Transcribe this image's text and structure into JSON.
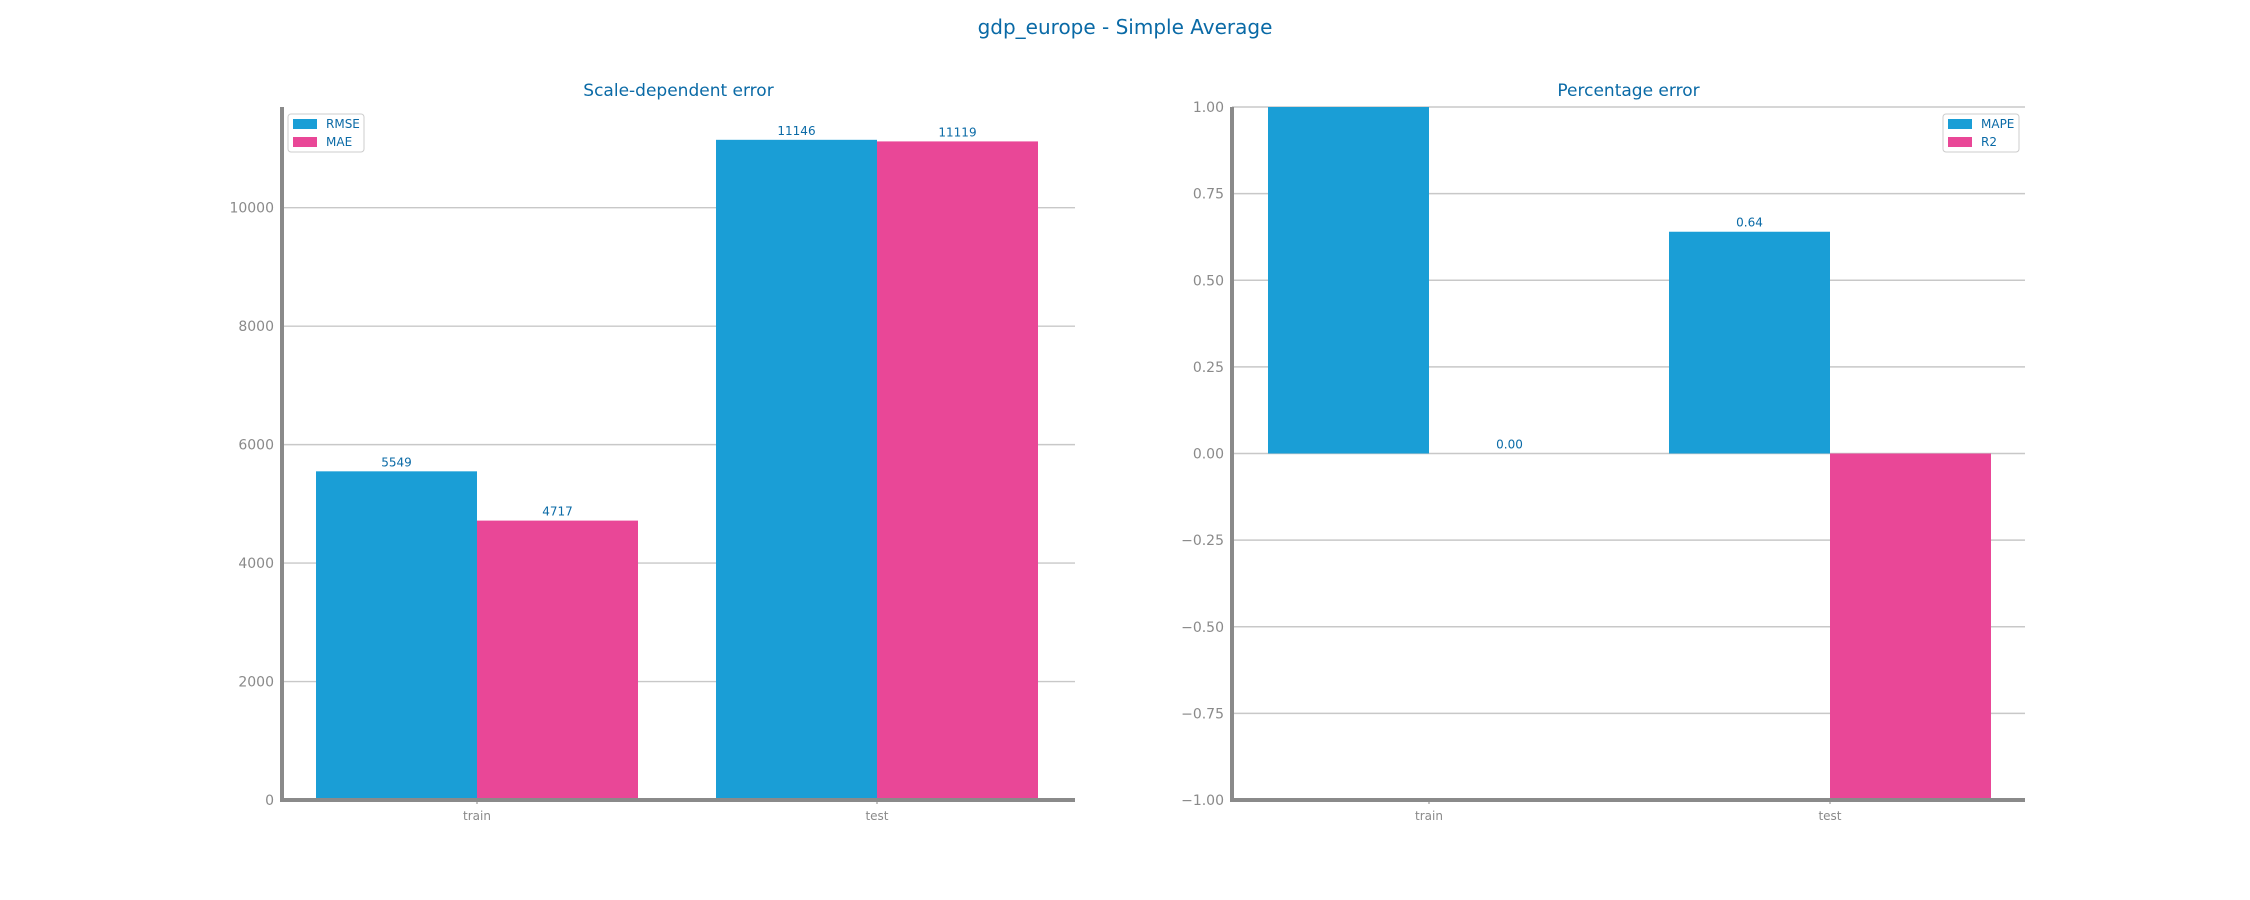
{
  "title": "gdp_europe - Simple Average",
  "colors": {
    "series1": "#1a9ed6",
    "series2": "#e94797",
    "text": "#0a6aa6",
    "axis": "#8a8a8a",
    "grid": "#c8c8c8"
  },
  "chart_data": [
    {
      "type": "bar",
      "title": "Scale-dependent error",
      "categories": [
        "train",
        "test"
      ],
      "series": [
        {
          "name": "RMSE",
          "values": [
            5549,
            11146
          ],
          "labels": [
            "5549",
            "11146"
          ]
        },
        {
          "name": "MAE",
          "values": [
            4717,
            11119
          ],
          "labels": [
            "4717",
            "11119"
          ]
        }
      ],
      "ylim": [
        0,
        11700
      ],
      "yticks": [
        0,
        2000,
        4000,
        6000,
        8000,
        10000
      ],
      "ytick_labels": [
        "0",
        "2000",
        "4000",
        "6000",
        "8000",
        "10000"
      ],
      "grid": true,
      "legend_position": "top-left"
    },
    {
      "type": "bar",
      "title": "Percentage error",
      "categories": [
        "train",
        "test"
      ],
      "series": [
        {
          "name": "MAPE",
          "values": [
            1.0,
            0.64
          ],
          "labels": [
            "",
            "0.64"
          ]
        },
        {
          "name": "R2",
          "values": [
            0.0,
            -1.0
          ],
          "labels": [
            "0.00",
            ""
          ]
        }
      ],
      "ylim": [
        -1.0,
        1.0
      ],
      "yticks": [
        -1.0,
        -0.75,
        -0.5,
        -0.25,
        0.0,
        0.25,
        0.5,
        0.75,
        1.0
      ],
      "ytick_labels": [
        "−1.00",
        "−0.75",
        "−0.50",
        "−0.25",
        "0.00",
        "0.25",
        "0.50",
        "0.75",
        "1.00"
      ],
      "grid": true,
      "legend_position": "top-right"
    }
  ]
}
